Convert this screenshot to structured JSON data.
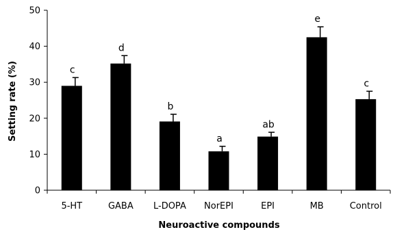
{
  "chart_data": {
    "type": "bar",
    "categories": [
      "5-HT",
      "GABA",
      "L-DOPA",
      "NorEPI",
      "EPI",
      "MB",
      "Control"
    ],
    "values": [
      29.0,
      35.2,
      19.1,
      10.8,
      14.9,
      42.5,
      25.3
    ],
    "errors": [
      2.3,
      2.2,
      2.0,
      1.4,
      1.2,
      2.9,
      2.2
    ],
    "significance_labels": [
      "c",
      "d",
      "b",
      "a",
      "ab",
      "e",
      "c"
    ],
    "xlabel": "Neuroactive compounds",
    "ylabel": "Setting rate (%)",
    "ylim": [
      0,
      50
    ],
    "yticks": [
      0,
      10,
      20,
      30,
      40,
      50
    ],
    "bar_color": "#000000",
    "grid": false,
    "legend": false
  }
}
